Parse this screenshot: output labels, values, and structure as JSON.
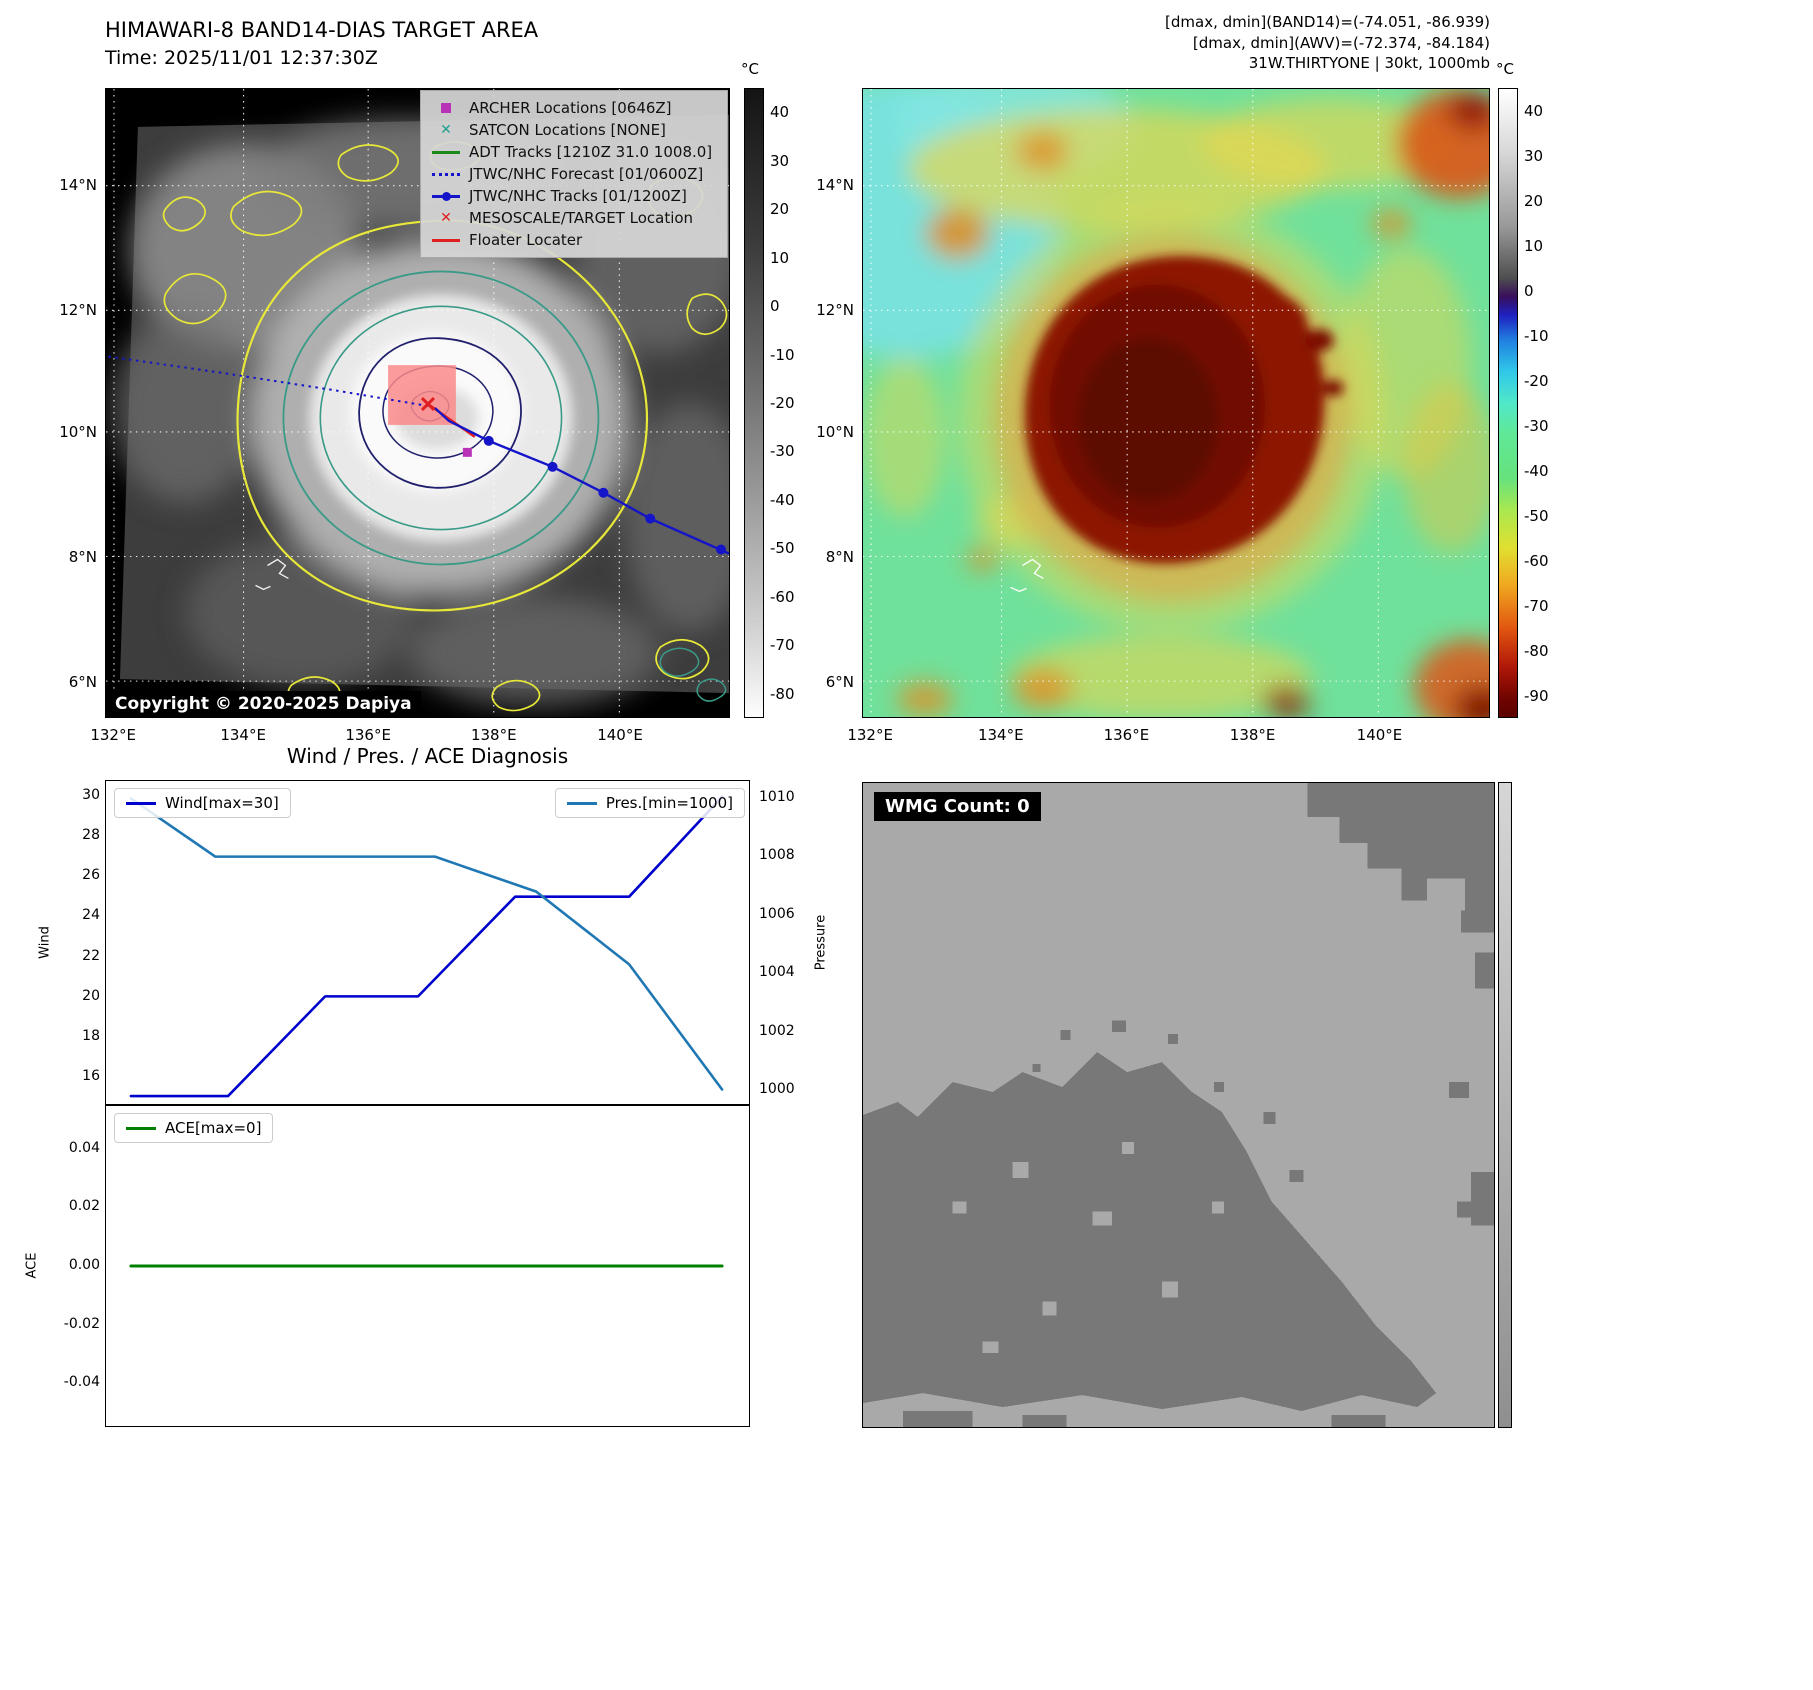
{
  "top_left": {
    "title": "HIMAWARI-8 BAND14-DIAS TARGET AREA",
    "time": "Time: 2025/11/01 12:37:30Z",
    "copyright": "Copyright © 2020-2025 Dapiya",
    "colorbar_unit": "°C",
    "colorbar_ticks": [
      "40",
      "30",
      "20",
      "10",
      "0",
      "-10",
      "-20",
      "-30",
      "-40",
      "-50",
      "-60",
      "-70",
      "-80"
    ],
    "x_ticks": [
      "132°E",
      "134°E",
      "136°E",
      "138°E",
      "140°E"
    ],
    "y_ticks": [
      "14°N",
      "12°N",
      "10°N",
      "8°N",
      "6°N"
    ],
    "legend": [
      {
        "label": "ARCHER Locations [0646Z]",
        "marker": "square",
        "color": "#b832b8"
      },
      {
        "label": "SATCON Locations [NONE]",
        "marker": "x",
        "color": "#20a090"
      },
      {
        "label": "ADT Tracks [1210Z 31.0 1008.0]",
        "marker": "line",
        "color": "#1a8a1a"
      },
      {
        "label": "JTWC/NHC Forecast [01/0600Z]",
        "marker": "dotted",
        "color": "#1414c8"
      },
      {
        "label": "JTWC/NHC Tracks [01/1200Z]",
        "marker": "line-dot",
        "color": "#1414c8"
      },
      {
        "label": "MESOSCALE/TARGET Location",
        "marker": "x",
        "color": "#e02020"
      },
      {
        "label": "Floater Locater",
        "marker": "line",
        "color": "#e02020"
      }
    ]
  },
  "top_right": {
    "header_lines": [
      "[dmax, dmin](BAND14)=(-74.051, -86.939)",
      "[dmax, dmin](AWV)=(-72.374, -84.184)",
      "31W.THIRTYONE | 30kt, 1000mb"
    ],
    "colorbar_unit": "°C",
    "colorbar_ticks": [
      "40",
      "30",
      "20",
      "10",
      "0",
      "-10",
      "-20",
      "-30",
      "-40",
      "-50",
      "-60",
      "-70",
      "-80",
      "-90"
    ],
    "x_ticks": [
      "132°E",
      "134°E",
      "136°E",
      "138°E",
      "140°E"
    ],
    "y_ticks": [
      "14°N",
      "12°N",
      "10°N",
      "8°N",
      "6°N"
    ]
  },
  "diagnosis": {
    "title": "Wind / Pres. / ACE Diagnosis"
  },
  "wmg": {
    "label": "WMG Count: 0"
  },
  "chart_data": [
    {
      "type": "line",
      "title": "Wind / Pres. / ACE Diagnosis (top panel)",
      "xlim": [
        0,
        7
      ],
      "series": [
        {
          "name": "Wind[max=30]",
          "color": "#0000cd",
          "axis": "left",
          "x": [
            0,
            1.15,
            2.3,
            3.4,
            4.55,
            5.2,
            5.9,
            7
          ],
          "values": [
            15,
            15,
            20,
            20,
            25,
            25,
            25,
            30
          ]
        },
        {
          "name": "Pres.[min=1000]",
          "color": "#1f77b4",
          "axis": "right",
          "x": [
            0,
            1,
            2,
            3,
            3.6,
            4.8,
            5.9,
            7
          ],
          "values": [
            1010,
            1008,
            1008,
            1008,
            1008,
            1006.8,
            1004.3,
            1000
          ]
        }
      ],
      "ylabel_left": "Wind",
      "ylabel_right": "Pressure",
      "ylim_left": [
        14.6,
        30.8
      ],
      "ylim_right": [
        999.5,
        1010.6
      ],
      "yticks_left": [
        30,
        28,
        26,
        24,
        22,
        20,
        18,
        16
      ],
      "yticks_right": [
        1010,
        1008,
        1006,
        1004,
        1002,
        1000
      ],
      "grid": false,
      "legend_position": "upper-left and upper-right"
    },
    {
      "type": "line",
      "title": "ACE (bottom panel)",
      "xlim": [
        0,
        7
      ],
      "series": [
        {
          "name": "ACE[max=0]",
          "color": "#008000",
          "x": [
            0,
            7
          ],
          "values": [
            0,
            0
          ]
        }
      ],
      "ylabel": "ACE",
      "ylim": [
        -0.055,
        0.055
      ],
      "yticks": [
        0.04,
        0.02,
        0,
        -0.02,
        -0.04
      ],
      "grid": false,
      "legend_position": "upper-left"
    }
  ]
}
